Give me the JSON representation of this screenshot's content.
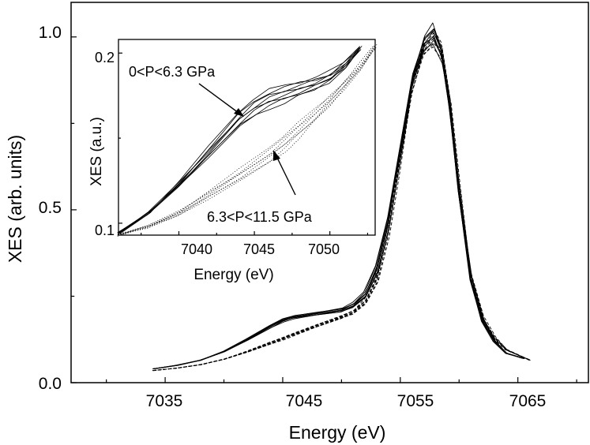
{
  "chart_data": [
    {
      "type": "line",
      "name": "main",
      "title": "",
      "xlabel": "Energy (eV)",
      "ylabel": "XES (arb. units)",
      "xlim": [
        7027,
        7071
      ],
      "ylim": [
        0.0,
        1.1
      ],
      "xticks": [
        7035,
        7045,
        7055,
        7065
      ],
      "xtick_labels": [
        "7035",
        "7045",
        "7055",
        "7065"
      ],
      "yticks": [
        0.0,
        0.5,
        1.0
      ],
      "ytick_labels": [
        "0.0",
        "0.5",
        "1.0"
      ],
      "grid": false,
      "series_groups": [
        {
          "name": "0<P<6.3 GPa",
          "style": "solid",
          "count": 8,
          "x": [
            7034,
            7036,
            7038,
            7040,
            7042,
            7044,
            7045,
            7046,
            7048,
            7050,
            7051,
            7052,
            7053,
            7054,
            7055,
            7056,
            7057,
            7057.8,
            7058.5,
            7059.2,
            7060,
            7061,
            7062,
            7063,
            7064,
            7065.5
          ],
          "y": [
            0.04,
            0.05,
            0.065,
            0.09,
            0.125,
            0.163,
            0.18,
            0.19,
            0.2,
            0.21,
            0.225,
            0.255,
            0.33,
            0.47,
            0.67,
            0.87,
            0.98,
            1.01,
            0.95,
            0.8,
            0.55,
            0.3,
            0.18,
            0.12,
            0.085,
            0.07
          ]
        },
        {
          "name": "6.3<P<11.5 GPa",
          "style": "dashed",
          "count": 7,
          "x": [
            7034,
            7036,
            7038,
            7040,
            7042,
            7044,
            7045,
            7046,
            7048,
            7050,
            7051,
            7052,
            7053,
            7054,
            7055,
            7056,
            7057,
            7057.8,
            7058.5,
            7059.2,
            7060,
            7061,
            7062,
            7063,
            7064,
            7066
          ],
          "y": [
            0.035,
            0.042,
            0.052,
            0.068,
            0.09,
            0.115,
            0.127,
            0.14,
            0.165,
            0.19,
            0.205,
            0.235,
            0.3,
            0.44,
            0.64,
            0.85,
            0.97,
            1.0,
            0.96,
            0.82,
            0.58,
            0.32,
            0.19,
            0.13,
            0.095,
            0.065
          ]
        }
      ]
    },
    {
      "type": "line",
      "name": "inset",
      "title": "",
      "xlabel": "Energy (eV)",
      "ylabel": "XES (a.u.)",
      "xlim": [
        7036,
        7053
      ],
      "ylim": [
        0.093,
        0.208
      ],
      "xticks": [
        7040,
        7045,
        7050
      ],
      "xtick_labels": [
        "7040",
        "7045",
        "7050"
      ],
      "yticks": [
        0.1,
        0.2
      ],
      "ytick_labels": [
        "0.1",
        "0.2"
      ],
      "grid": false,
      "annotations": [
        {
          "text": "0<P<6.3 GPa",
          "points_to": [
            7044.4,
            0.172
          ]
        },
        {
          "text": "6.3<P<11.5 GPa",
          "points_to": [
            7046.8,
            0.148
          ]
        }
      ],
      "series_groups": [
        {
          "name": "0<P<6.3 GPa",
          "style": "solid",
          "count": 8,
          "x": [
            7036,
            7038,
            7040,
            7042,
            7044,
            7045,
            7046,
            7047,
            7048,
            7049,
            7050,
            7051,
            7052
          ],
          "y": [
            0.094,
            0.106,
            0.123,
            0.142,
            0.161,
            0.168,
            0.173,
            0.176,
            0.179,
            0.182,
            0.186,
            0.193,
            0.203
          ]
        },
        {
          "name": "6.3<P<11.5 GPa",
          "style": "dotted",
          "count": 7,
          "x": [
            7036,
            7038,
            7040,
            7042,
            7044,
            7046,
            7047,
            7048,
            7049,
            7050,
            7051,
            7052,
            7053
          ],
          "y": [
            0.093,
            0.098,
            0.106,
            0.117,
            0.128,
            0.14,
            0.147,
            0.155,
            0.163,
            0.172,
            0.182,
            0.192,
            0.204
          ]
        }
      ]
    }
  ]
}
